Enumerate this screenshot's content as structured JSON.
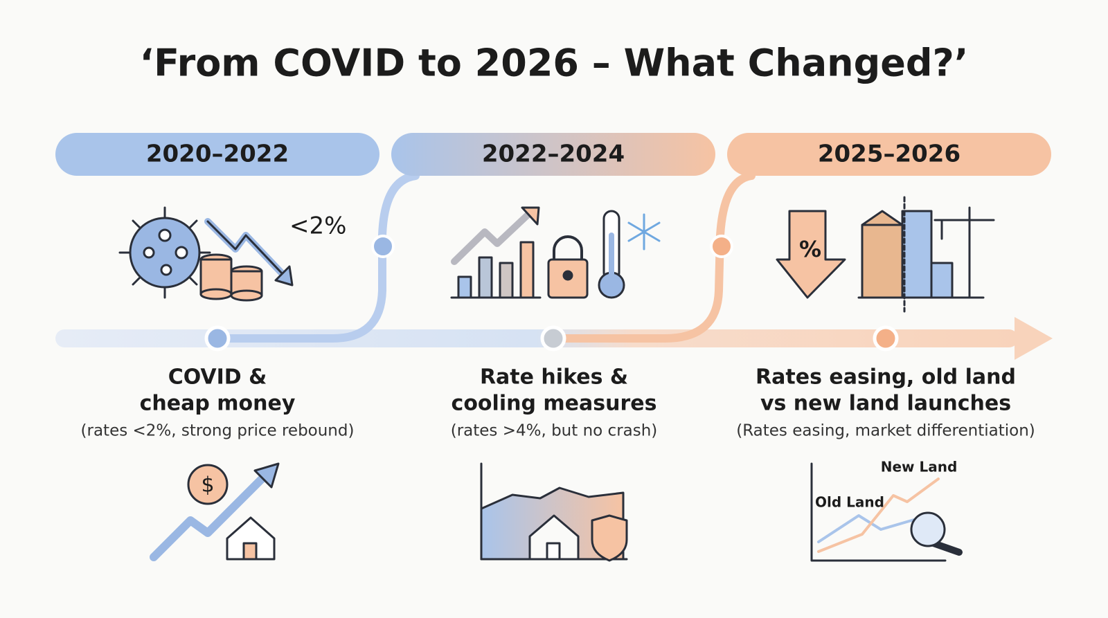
{
  "title": "‘From COVID to 2026 – What Changed?’",
  "phases": [
    {
      "period": "2020–2022",
      "icon_text": "<2%",
      "headline": [
        "COVID &",
        "cheap money"
      ],
      "note": "(rates <2%, strong price rebound)"
    },
    {
      "period": "2022–2024",
      "headline": [
        "Rate hikes &",
        "cooling measures"
      ],
      "note": "(rates >4%, but no crash)"
    },
    {
      "period": "2025–2026",
      "icon_text": "%",
      "headline": [
        "Rates easing, old land",
        "vs new land launches"
      ],
      "note": "(Rates easing, market differentiation)",
      "chart_labels": [
        "New Land",
        "Old Land"
      ]
    }
  ]
}
